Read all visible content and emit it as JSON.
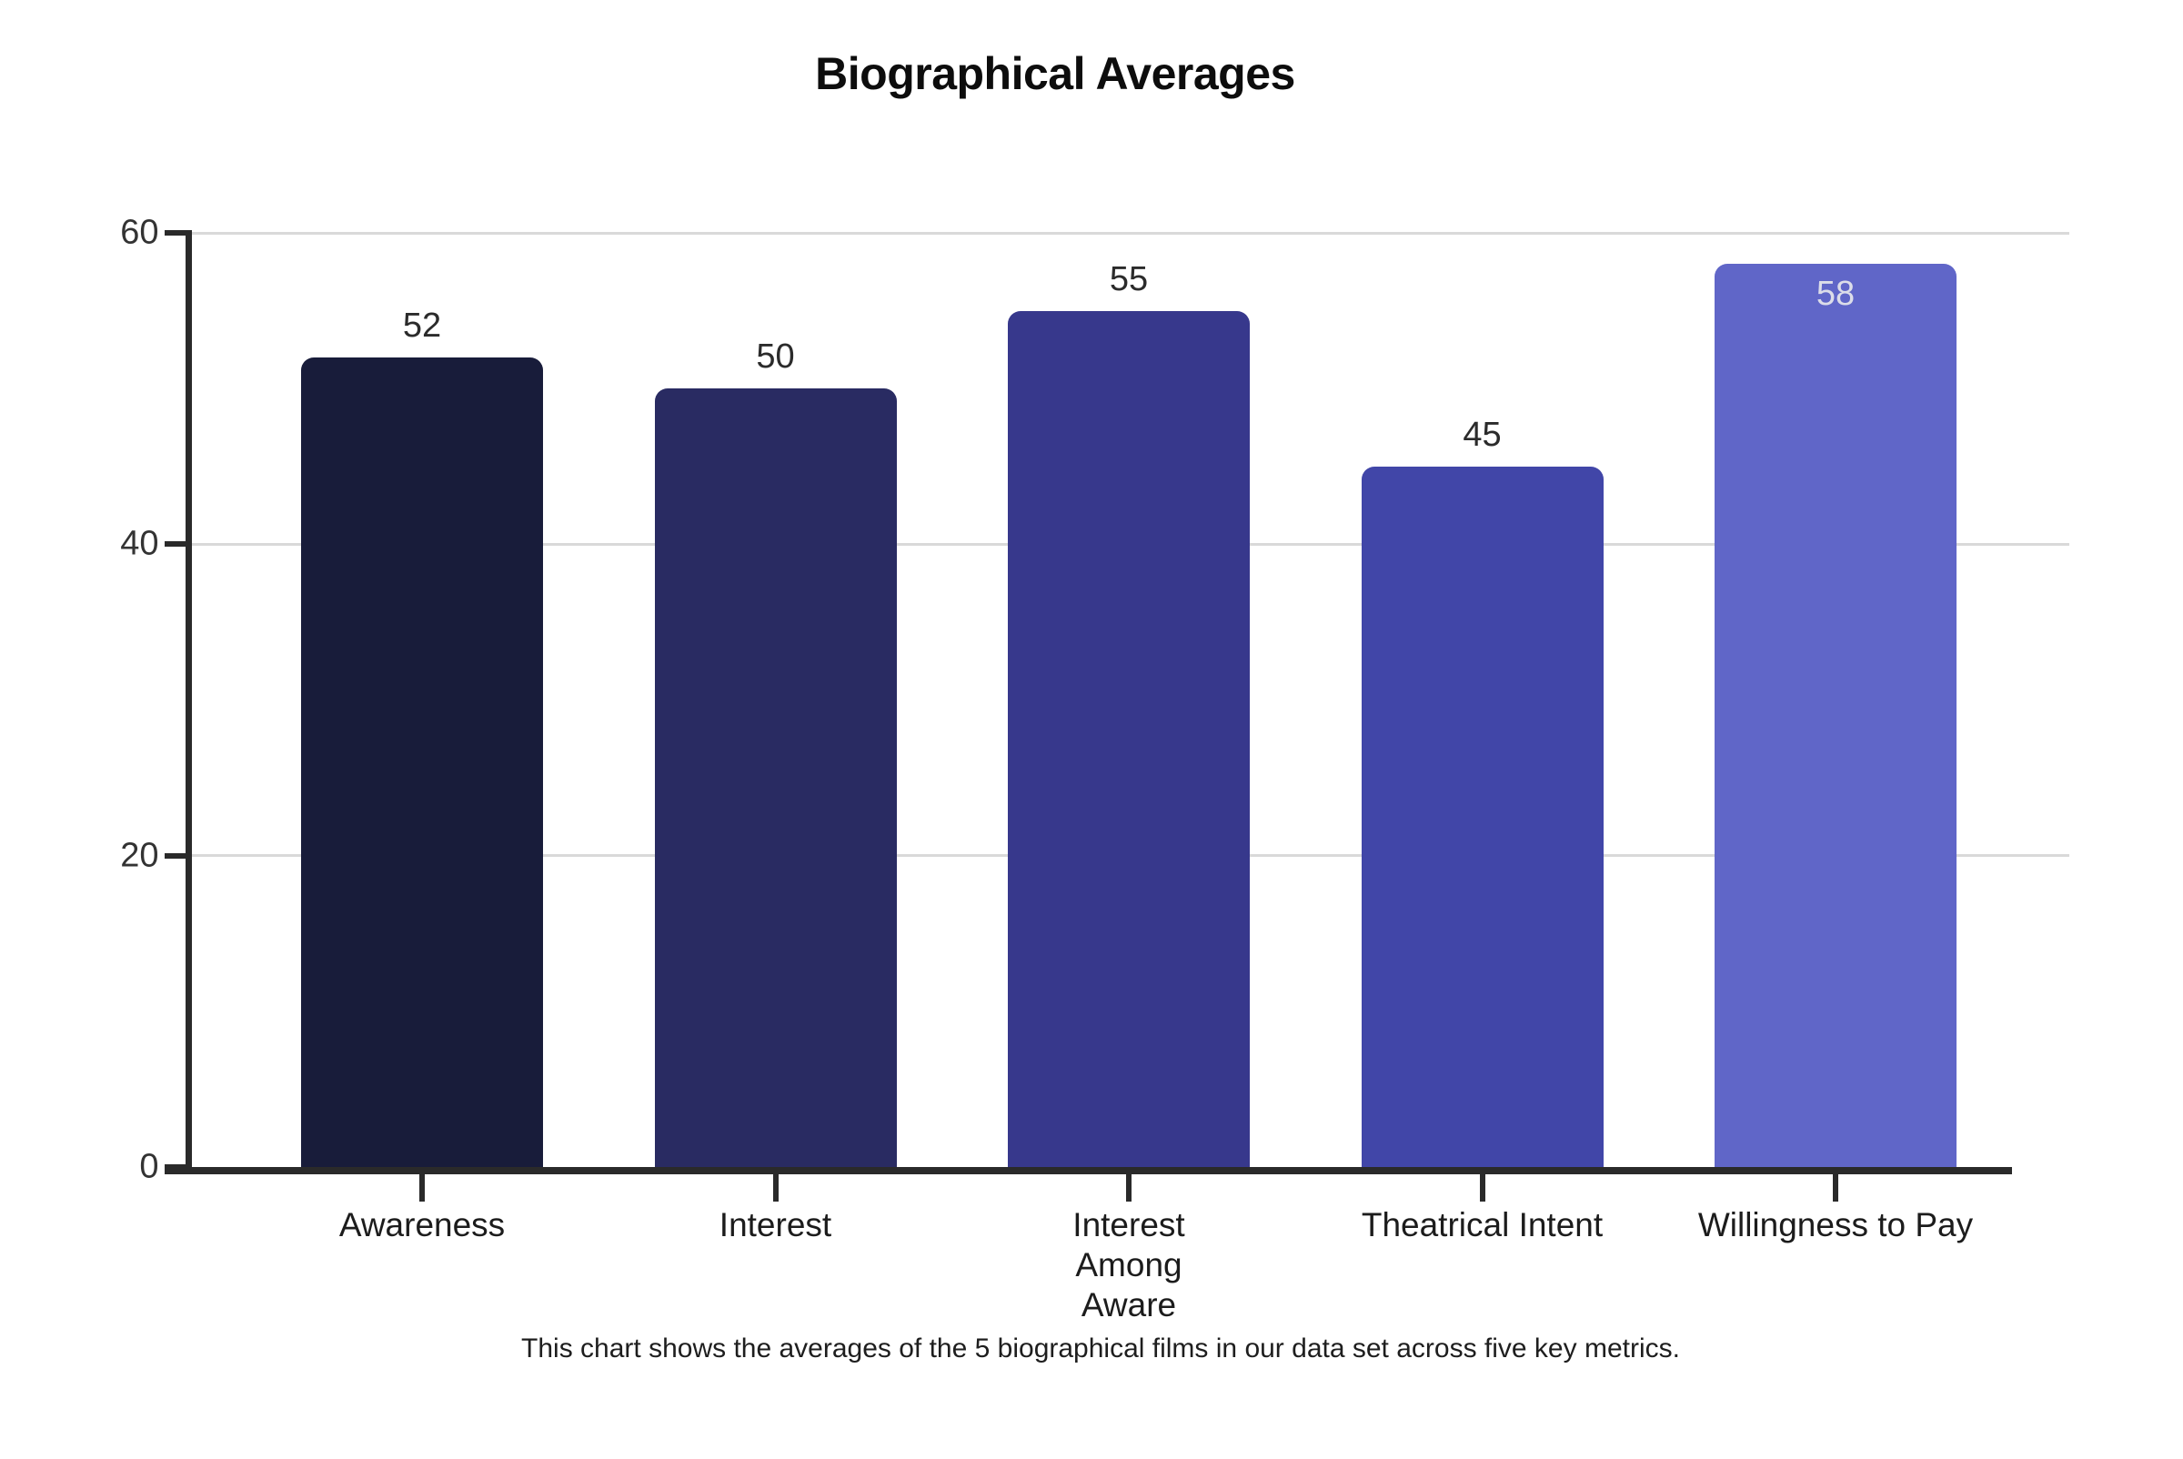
{
  "header": {
    "title": "Biographical Averages"
  },
  "footer": {
    "caption": "This chart shows the averages of the 5 biographical films in our data set across five key metrics."
  },
  "chart_data": {
    "type": "bar",
    "title": "Biographical Averages",
    "categories": [
      "Awareness",
      "Interest",
      "Interest Among Aware",
      "Theatrical Intent",
      "Willingness to Pay"
    ],
    "category_display_lines": [
      [
        "Awareness"
      ],
      [
        "Interest"
      ],
      [
        "Interest",
        "Among",
        "Aware"
      ],
      [
        "Theatrical Intent"
      ],
      [
        "Willingness to Pay"
      ]
    ],
    "values": [
      52,
      50,
      55,
      45,
      58
    ],
    "bar_colors": [
      "#181c3a",
      "#292b62",
      "#37388c",
      "#4146a8",
      "#6066c8"
    ],
    "value_label_placement": [
      "above",
      "above",
      "above",
      "above",
      "inside"
    ],
    "value_label_color_outside": "#2b2b2b",
    "value_label_color_inside": "#dcdde9",
    "ylim": [
      0,
      60
    ],
    "yticks": [
      0,
      20,
      40,
      60
    ],
    "grid": "horizontal gridlines at 20, 40, 60",
    "legend": "none",
    "xlabel": "",
    "ylabel": "",
    "axis_color": "#2a2a2a",
    "gridline_color": "#d9d9d9",
    "caption": "This chart shows the averages of the 5 biographical films in our data set across five key metrics."
  }
}
